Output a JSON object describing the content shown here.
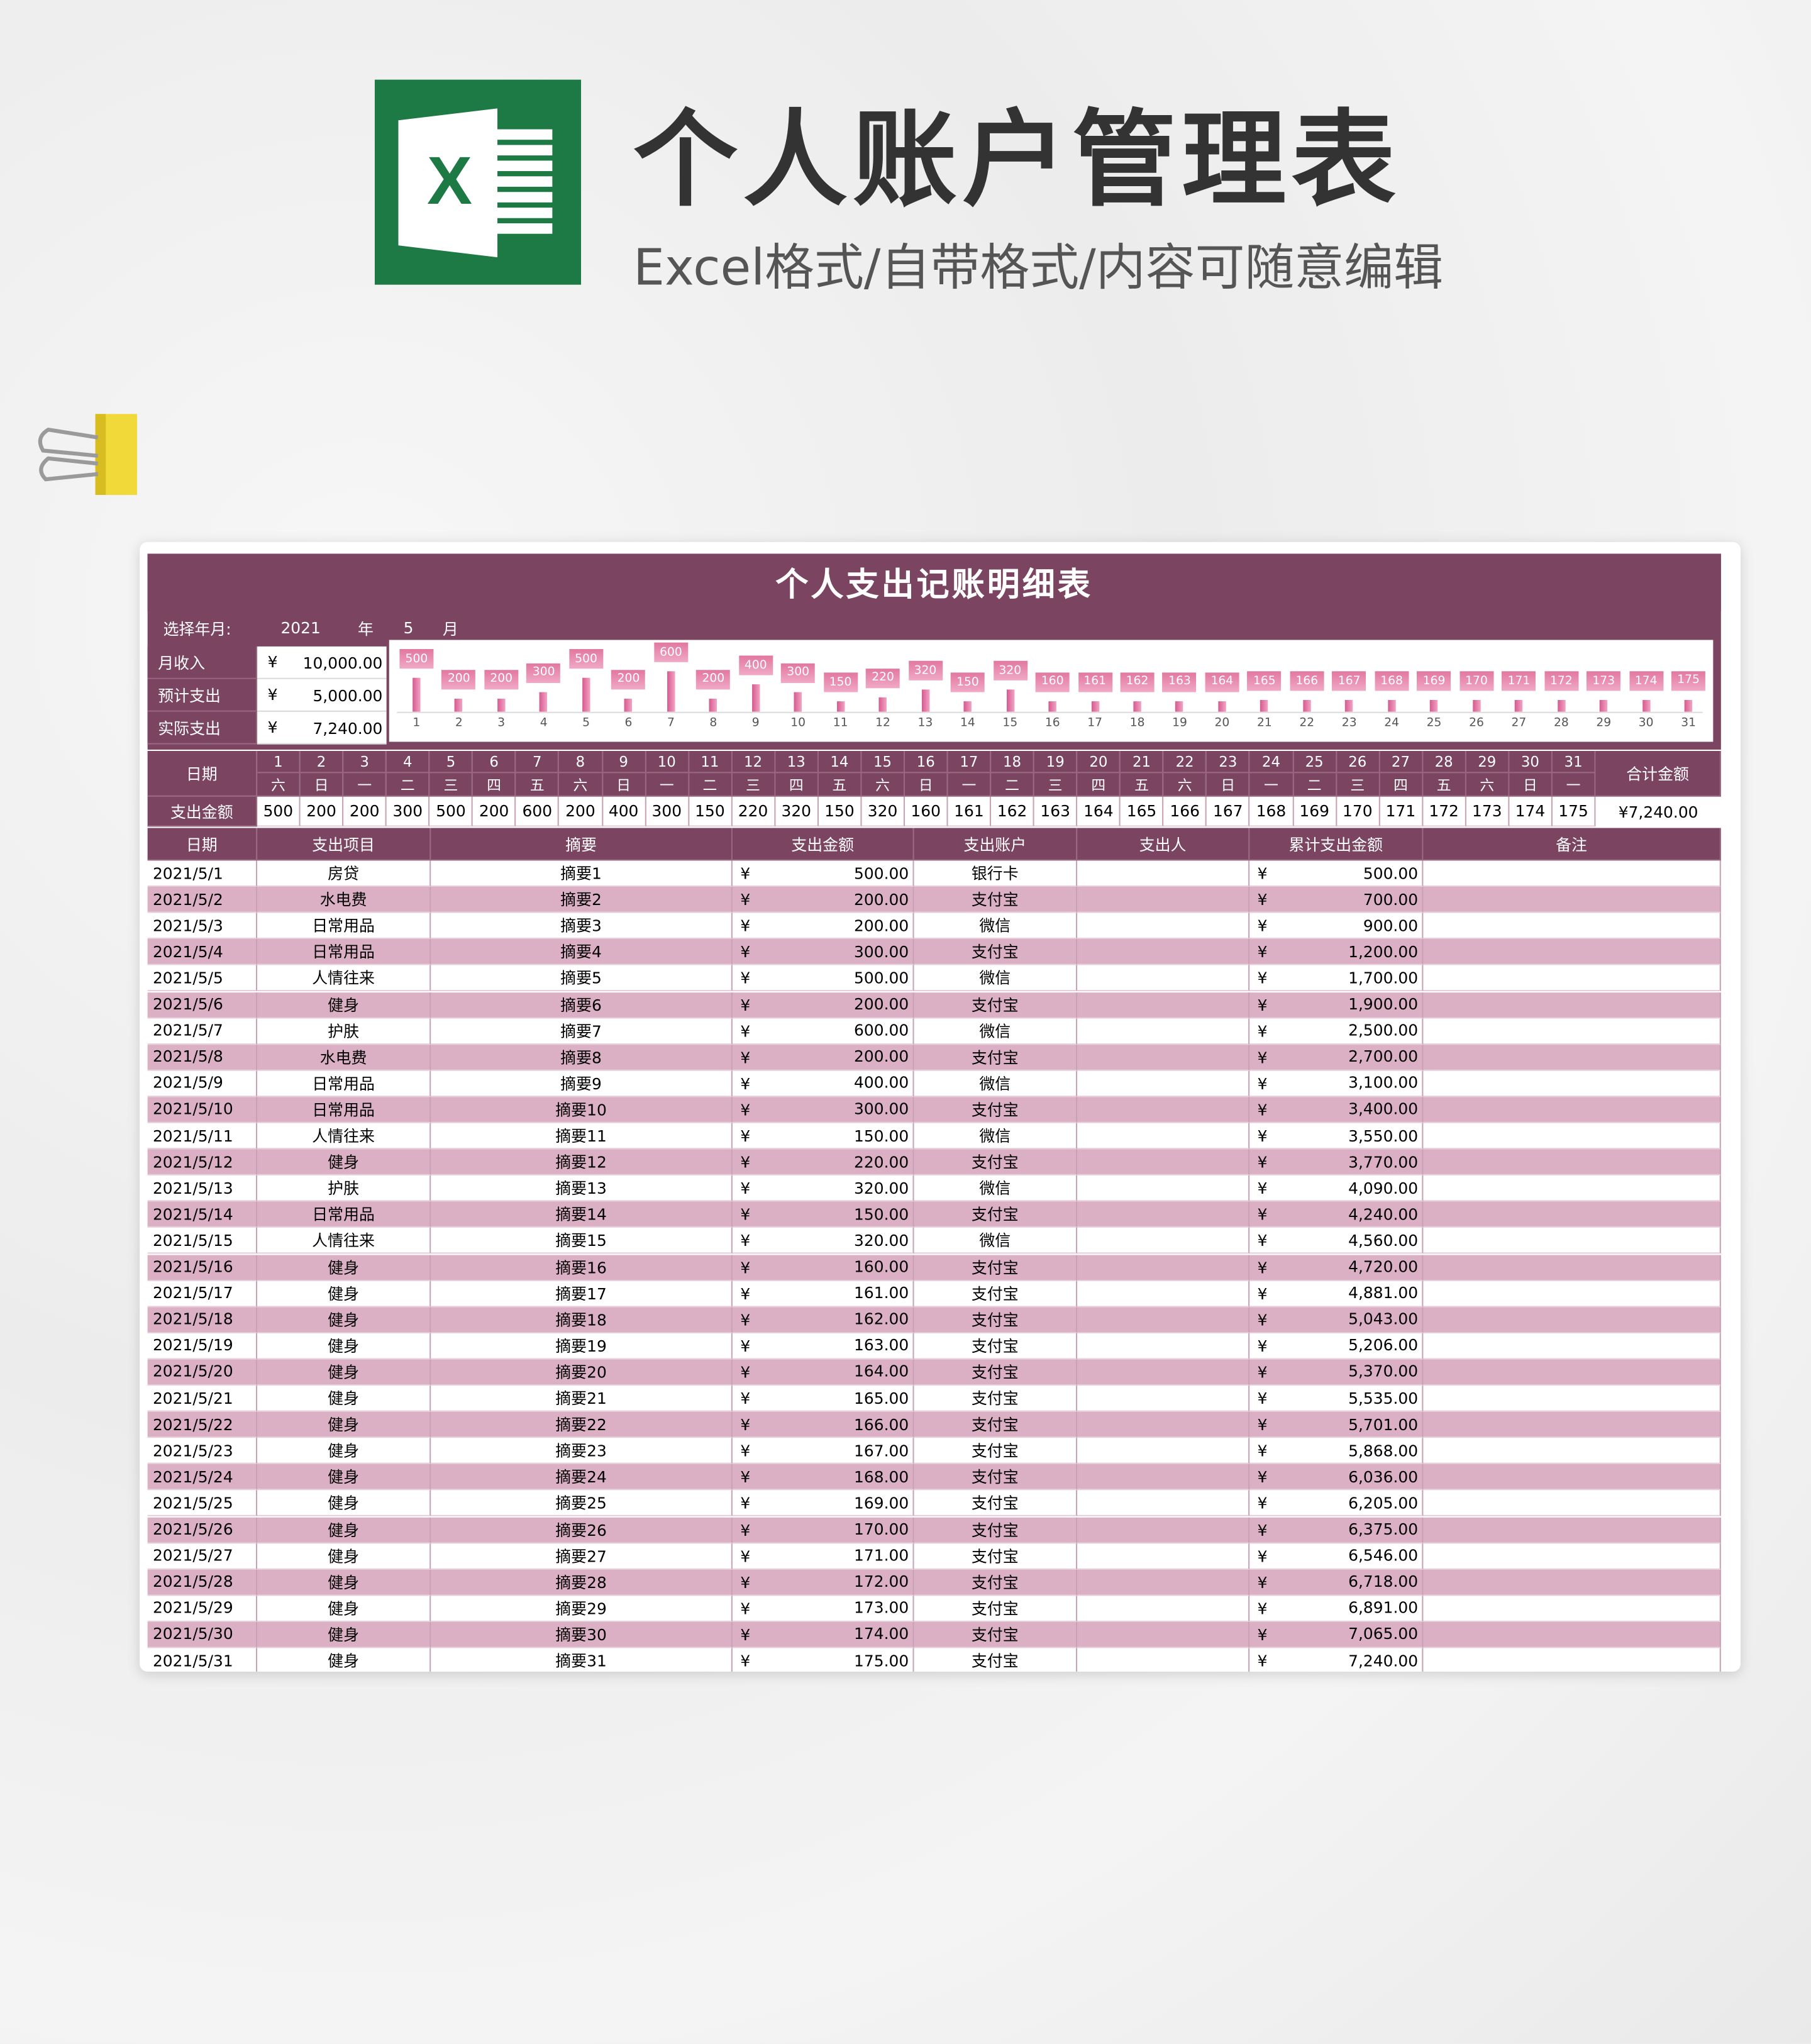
{
  "banner": {
    "title": "个人账户管理表",
    "subtitle": "Excel格式/自带格式/内容可随意编辑",
    "logo_letter": "X"
  },
  "colors": {
    "header": "#7b4461",
    "row_alt": "#dcb0c4",
    "excel_green": "#1e7a45",
    "bar": "#e07aa5"
  },
  "sheet": {
    "title": "个人支出记账明细表",
    "select_label": "选择年月:",
    "year": "2021",
    "year_unit": "年",
    "month": "5",
    "month_unit": "月",
    "summary": [
      {
        "label": "月收入",
        "currency": "¥",
        "value": "10,000.00"
      },
      {
        "label": "预计支出",
        "currency": "¥",
        "value": "5,000.00"
      },
      {
        "label": "实际支出",
        "currency": "¥",
        "value": "7,240.00"
      }
    ],
    "calendar": {
      "date_label": "日期",
      "amount_label": "支出金额",
      "total_label": "合计金额",
      "total_value": "¥7,240.00",
      "days": [
        "1",
        "2",
        "3",
        "4",
        "5",
        "6",
        "7",
        "8",
        "9",
        "10",
        "11",
        "12",
        "13",
        "14",
        "15",
        "16",
        "17",
        "18",
        "19",
        "20",
        "21",
        "22",
        "23",
        "24",
        "25",
        "26",
        "27",
        "28",
        "29",
        "30",
        "31"
      ],
      "weekdays": [
        "六",
        "日",
        "一",
        "二",
        "三",
        "四",
        "五",
        "六",
        "日",
        "一",
        "二",
        "三",
        "四",
        "五",
        "六",
        "日",
        "一",
        "二",
        "三",
        "四",
        "五",
        "六",
        "日",
        "一",
        "二",
        "三",
        "四",
        "五",
        "六",
        "日",
        "一"
      ],
      "amounts": [
        "500",
        "200",
        "200",
        "300",
        "500",
        "200",
        "600",
        "200",
        "400",
        "300",
        "150",
        "220",
        "320",
        "150",
        "320",
        "160",
        "161",
        "162",
        "163",
        "164",
        "165",
        "166",
        "167",
        "168",
        "169",
        "170",
        "171",
        "172",
        "173",
        "174",
        "175"
      ]
    },
    "table": {
      "headers": [
        "日期",
        "支出项目",
        "摘要",
        "支出金额",
        "支出账户",
        "支出人",
        "累计支出金额",
        "备注"
      ],
      "currency": "¥",
      "rows": [
        [
          "2021/5/1",
          "房贷",
          "摘要1",
          "500.00",
          "银行卡",
          "",
          "500.00",
          ""
        ],
        [
          "2021/5/2",
          "水电费",
          "摘要2",
          "200.00",
          "支付宝",
          "",
          "700.00",
          ""
        ],
        [
          "2021/5/3",
          "日常用品",
          "摘要3",
          "200.00",
          "微信",
          "",
          "900.00",
          ""
        ],
        [
          "2021/5/4",
          "日常用品",
          "摘要4",
          "300.00",
          "支付宝",
          "",
          "1,200.00",
          ""
        ],
        [
          "2021/5/5",
          "人情往来",
          "摘要5",
          "500.00",
          "微信",
          "",
          "1,700.00",
          ""
        ],
        [
          "2021/5/6",
          "健身",
          "摘要6",
          "200.00",
          "支付宝",
          "",
          "1,900.00",
          ""
        ],
        [
          "2021/5/7",
          "护肤",
          "摘要7",
          "600.00",
          "微信",
          "",
          "2,500.00",
          ""
        ],
        [
          "2021/5/8",
          "水电费",
          "摘要8",
          "200.00",
          "支付宝",
          "",
          "2,700.00",
          ""
        ],
        [
          "2021/5/9",
          "日常用品",
          "摘要9",
          "400.00",
          "微信",
          "",
          "3,100.00",
          ""
        ],
        [
          "2021/5/10",
          "日常用品",
          "摘要10",
          "300.00",
          "支付宝",
          "",
          "3,400.00",
          ""
        ],
        [
          "2021/5/11",
          "人情往来",
          "摘要11",
          "150.00",
          "微信",
          "",
          "3,550.00",
          ""
        ],
        [
          "2021/5/12",
          "健身",
          "摘要12",
          "220.00",
          "支付宝",
          "",
          "3,770.00",
          ""
        ],
        [
          "2021/5/13",
          "护肤",
          "摘要13",
          "320.00",
          "微信",
          "",
          "4,090.00",
          ""
        ],
        [
          "2021/5/14",
          "日常用品",
          "摘要14",
          "150.00",
          "支付宝",
          "",
          "4,240.00",
          ""
        ],
        [
          "2021/5/15",
          "人情往来",
          "摘要15",
          "320.00",
          "微信",
          "",
          "4,560.00",
          ""
        ],
        [
          "2021/5/16",
          "健身",
          "摘要16",
          "160.00",
          "支付宝",
          "",
          "4,720.00",
          ""
        ],
        [
          "2021/5/17",
          "健身",
          "摘要17",
          "161.00",
          "支付宝",
          "",
          "4,881.00",
          ""
        ],
        [
          "2021/5/18",
          "健身",
          "摘要18",
          "162.00",
          "支付宝",
          "",
          "5,043.00",
          ""
        ],
        [
          "2021/5/19",
          "健身",
          "摘要19",
          "163.00",
          "支付宝",
          "",
          "5,206.00",
          ""
        ],
        [
          "2021/5/20",
          "健身",
          "摘要20",
          "164.00",
          "支付宝",
          "",
          "5,370.00",
          ""
        ],
        [
          "2021/5/21",
          "健身",
          "摘要21",
          "165.00",
          "支付宝",
          "",
          "5,535.00",
          ""
        ],
        [
          "2021/5/22",
          "健身",
          "摘要22",
          "166.00",
          "支付宝",
          "",
          "5,701.00",
          ""
        ],
        [
          "2021/5/23",
          "健身",
          "摘要23",
          "167.00",
          "支付宝",
          "",
          "5,868.00",
          ""
        ],
        [
          "2021/5/24",
          "健身",
          "摘要24",
          "168.00",
          "支付宝",
          "",
          "6,036.00",
          ""
        ],
        [
          "2021/5/25",
          "健身",
          "摘要25",
          "169.00",
          "支付宝",
          "",
          "6,205.00",
          ""
        ],
        [
          "2021/5/26",
          "健身",
          "摘要26",
          "170.00",
          "支付宝",
          "",
          "6,375.00",
          ""
        ],
        [
          "2021/5/27",
          "健身",
          "摘要27",
          "171.00",
          "支付宝",
          "",
          "6,546.00",
          ""
        ],
        [
          "2021/5/28",
          "健身",
          "摘要28",
          "172.00",
          "支付宝",
          "",
          "6,718.00",
          ""
        ],
        [
          "2021/5/29",
          "健身",
          "摘要29",
          "173.00",
          "支付宝",
          "",
          "6,891.00",
          ""
        ],
        [
          "2021/5/30",
          "健身",
          "摘要30",
          "174.00",
          "支付宝",
          "",
          "7,065.00",
          ""
        ],
        [
          "2021/5/31",
          "健身",
          "摘要31",
          "175.00",
          "支付宝",
          "",
          "7,240.00",
          ""
        ]
      ]
    }
  },
  "chart_data": {
    "type": "bar",
    "categories": [
      "1",
      "2",
      "3",
      "4",
      "5",
      "6",
      "7",
      "8",
      "9",
      "10",
      "11",
      "12",
      "13",
      "14",
      "15",
      "16",
      "17",
      "18",
      "19",
      "20",
      "21",
      "22",
      "23",
      "24",
      "25",
      "26",
      "27",
      "28",
      "29",
      "30",
      "31"
    ],
    "values": [
      500,
      200,
      200,
      300,
      500,
      200,
      600,
      200,
      400,
      300,
      150,
      220,
      320,
      150,
      320,
      160,
      161,
      162,
      163,
      164,
      165,
      166,
      167,
      168,
      169,
      170,
      171,
      172,
      173,
      174,
      175
    ],
    "data_labels": true,
    "grid": false,
    "legend": "none",
    "ylim": [
      0,
      600
    ]
  }
}
